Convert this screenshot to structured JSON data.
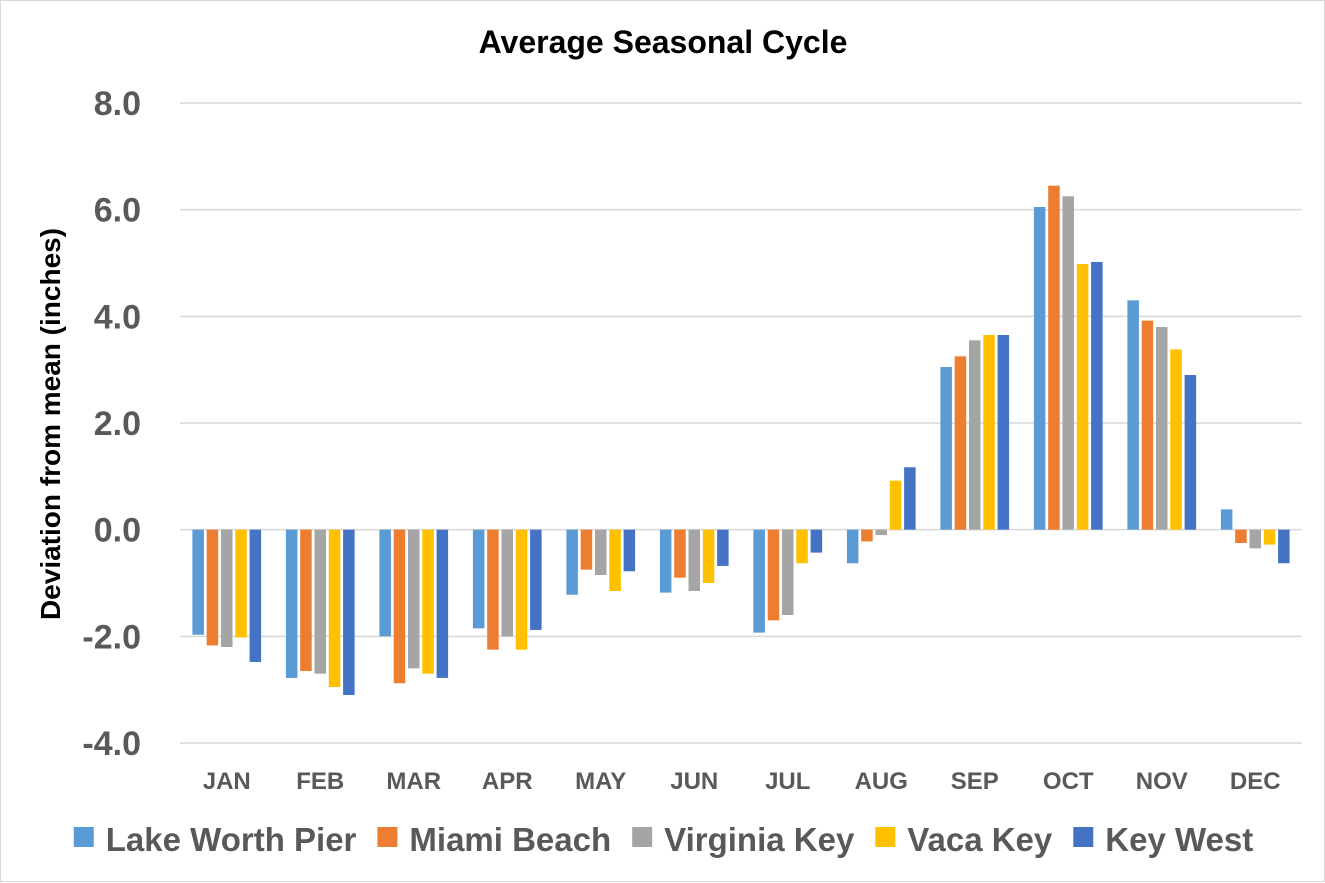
{
  "chart_data": {
    "type": "bar",
    "title": "Average Seasonal Cycle",
    "xlabel": "",
    "ylabel": "Deviation from mean (inches)",
    "ylim": [
      -4.0,
      8.0
    ],
    "yticks": [
      "8.0",
      "6.0",
      "4.0",
      "2.0",
      "0.0",
      "-2.0",
      "-4.0"
    ],
    "ytick_values": [
      8,
      6,
      4,
      2,
      0,
      -2,
      -4
    ],
    "grid": true,
    "legend_position": "bottom",
    "categories": [
      "JAN",
      "FEB",
      "MAR",
      "APR",
      "MAY",
      "JUN",
      "JUL",
      "AUG",
      "SEP",
      "OCT",
      "NOV",
      "DEC"
    ],
    "series": [
      {
        "name": "Lake Worth Pier",
        "color": "#5B9BD5",
        "values": [
          -1.97,
          -2.78,
          -2.0,
          -1.85,
          -1.22,
          -1.18,
          -1.93,
          -0.63,
          3.05,
          6.05,
          4.3,
          0.38
        ]
      },
      {
        "name": "Miami Beach",
        "color": "#ED7D31",
        "values": [
          -2.17,
          -2.65,
          -2.88,
          -2.25,
          -0.75,
          -0.9,
          -1.7,
          -0.22,
          3.25,
          6.45,
          3.92,
          -0.25
        ]
      },
      {
        "name": "Virginia Key",
        "color": "#A5A5A5",
        "values": [
          -2.2,
          -2.7,
          -2.6,
          -2.0,
          -0.85,
          -1.15,
          -1.6,
          -0.1,
          3.55,
          6.25,
          3.8,
          -0.35
        ]
      },
      {
        "name": "Vaca Key",
        "color": "#FFC000",
        "values": [
          -2.02,
          -2.95,
          -2.7,
          -2.25,
          -1.15,
          -1.0,
          -0.63,
          0.92,
          3.65,
          4.98,
          3.38,
          -0.28
        ]
      },
      {
        "name": "Key West",
        "color": "#4472C4",
        "values": [
          -2.48,
          -3.1,
          -2.78,
          -1.88,
          -0.78,
          -0.68,
          -0.43,
          1.17,
          3.65,
          5.02,
          2.9,
          -0.63
        ]
      }
    ]
  }
}
